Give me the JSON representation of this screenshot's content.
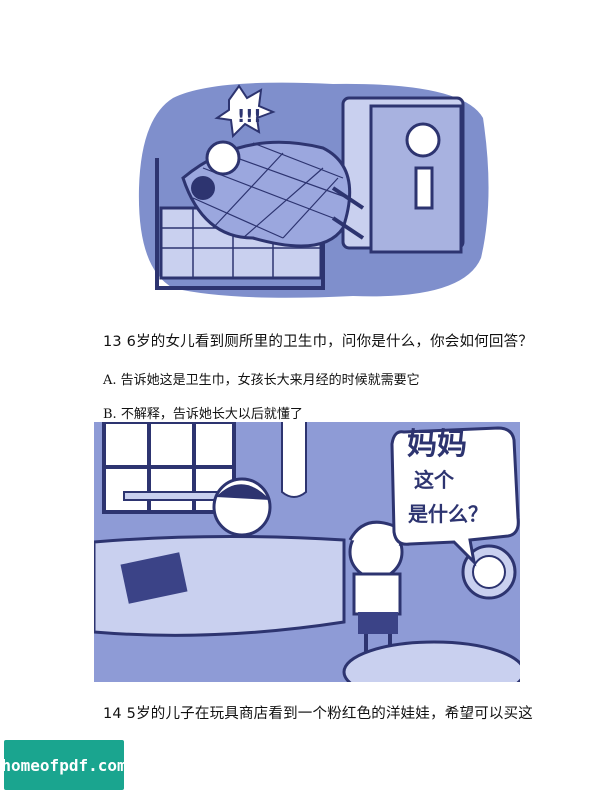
{
  "questions": [
    {
      "title": "13 6岁的女儿看到厕所里的卫生巾，问你是什么，你会如何回答？",
      "options": [
        "A. 告诉她这是卫生巾，女孩长大来月经的时候就需要它",
        "B. 不解释，告诉她长大以后就懂了"
      ]
    },
    {
      "title": "14 5岁的儿子在玩具商店看到一个粉红色的洋娃娃，希望可以买这"
    }
  ],
  "illustration2": {
    "bubble_line1": "妈妈",
    "bubble_line2": "这个",
    "bubble_line3": "是什么？"
  },
  "watermark": "homeofpdf.com",
  "colors": {
    "illustration_bg": "#7f8fcc",
    "illustration_dark": "#2d3470",
    "illustration_light": "#c9d0ef",
    "watermark_bg": "#1aa58f"
  }
}
